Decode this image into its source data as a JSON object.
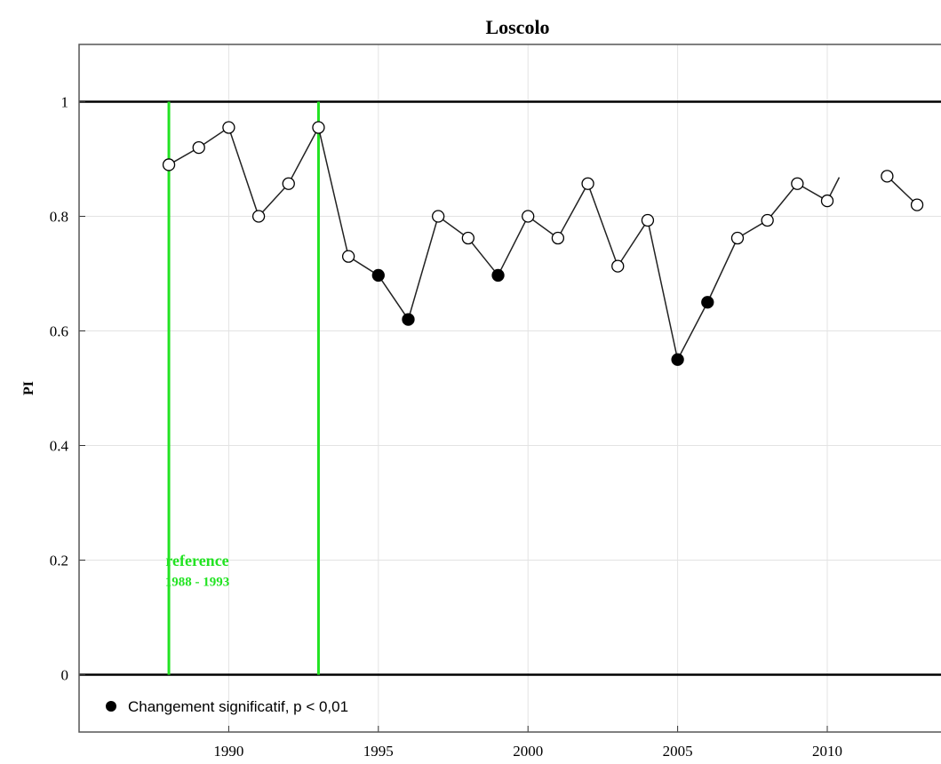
{
  "chart_data": {
    "type": "scatter",
    "title": "Loscolo",
    "ylabel": "PI",
    "xlabel": "",
    "xlim": [
      1985.0,
      2013.8
    ],
    "ylim": [
      -0.1,
      1.1
    ],
    "x_ticks": [
      1990,
      1995,
      2000,
      2005,
      2010
    ],
    "y_ticks": [
      0,
      0.2,
      0.4,
      0.6,
      0.8,
      1
    ],
    "y_tick_labels": [
      "0",
      "0.2",
      "0.4",
      "0.6",
      "0.8",
      "1"
    ],
    "x_tick_labels": [
      "1990",
      "1995",
      "2000",
      "2005",
      "2010"
    ],
    "grid": true,
    "reference_lines": {
      "y": [
        0,
        1
      ],
      "color": "#000000"
    },
    "reference_period": {
      "start": 1988,
      "end": 1993,
      "label": "reference",
      "range_label": "1988 - 1993",
      "color": "#22e322"
    },
    "legend": {
      "label": "Changement significatif, p < 0,01",
      "position": "bottom-left"
    },
    "series": [
      {
        "x": [
          1988,
          1989,
          1990,
          1991,
          1992,
          1993,
          1994,
          1995,
          1996,
          1997,
          1998,
          1999,
          2000,
          2001,
          2002,
          2003,
          2004,
          2005,
          2006,
          2007,
          2008,
          2009,
          2010,
          2012,
          2013
        ],
        "y": [
          0.89,
          0.92,
          0.955,
          0.8,
          0.857,
          0.955,
          0.73,
          0.697,
          0.62,
          0.8,
          0.762,
          0.697,
          0.8,
          0.762,
          0.857,
          0.713,
          0.793,
          0.55,
          0.65,
          0.762,
          0.793,
          0.857,
          0.827,
          0.87,
          0.82
        ],
        "significant": [
          false,
          false,
          false,
          false,
          false,
          false,
          false,
          true,
          true,
          false,
          false,
          true,
          false,
          false,
          false,
          false,
          false,
          true,
          true,
          false,
          false,
          false,
          false,
          false,
          false
        ],
        "segments": [
          [
            0,
            22
          ],
          [
            23,
            24
          ]
        ],
        "trailing_segment_end": {
          "x": 2010.4,
          "y": 0.868
        }
      }
    ]
  }
}
